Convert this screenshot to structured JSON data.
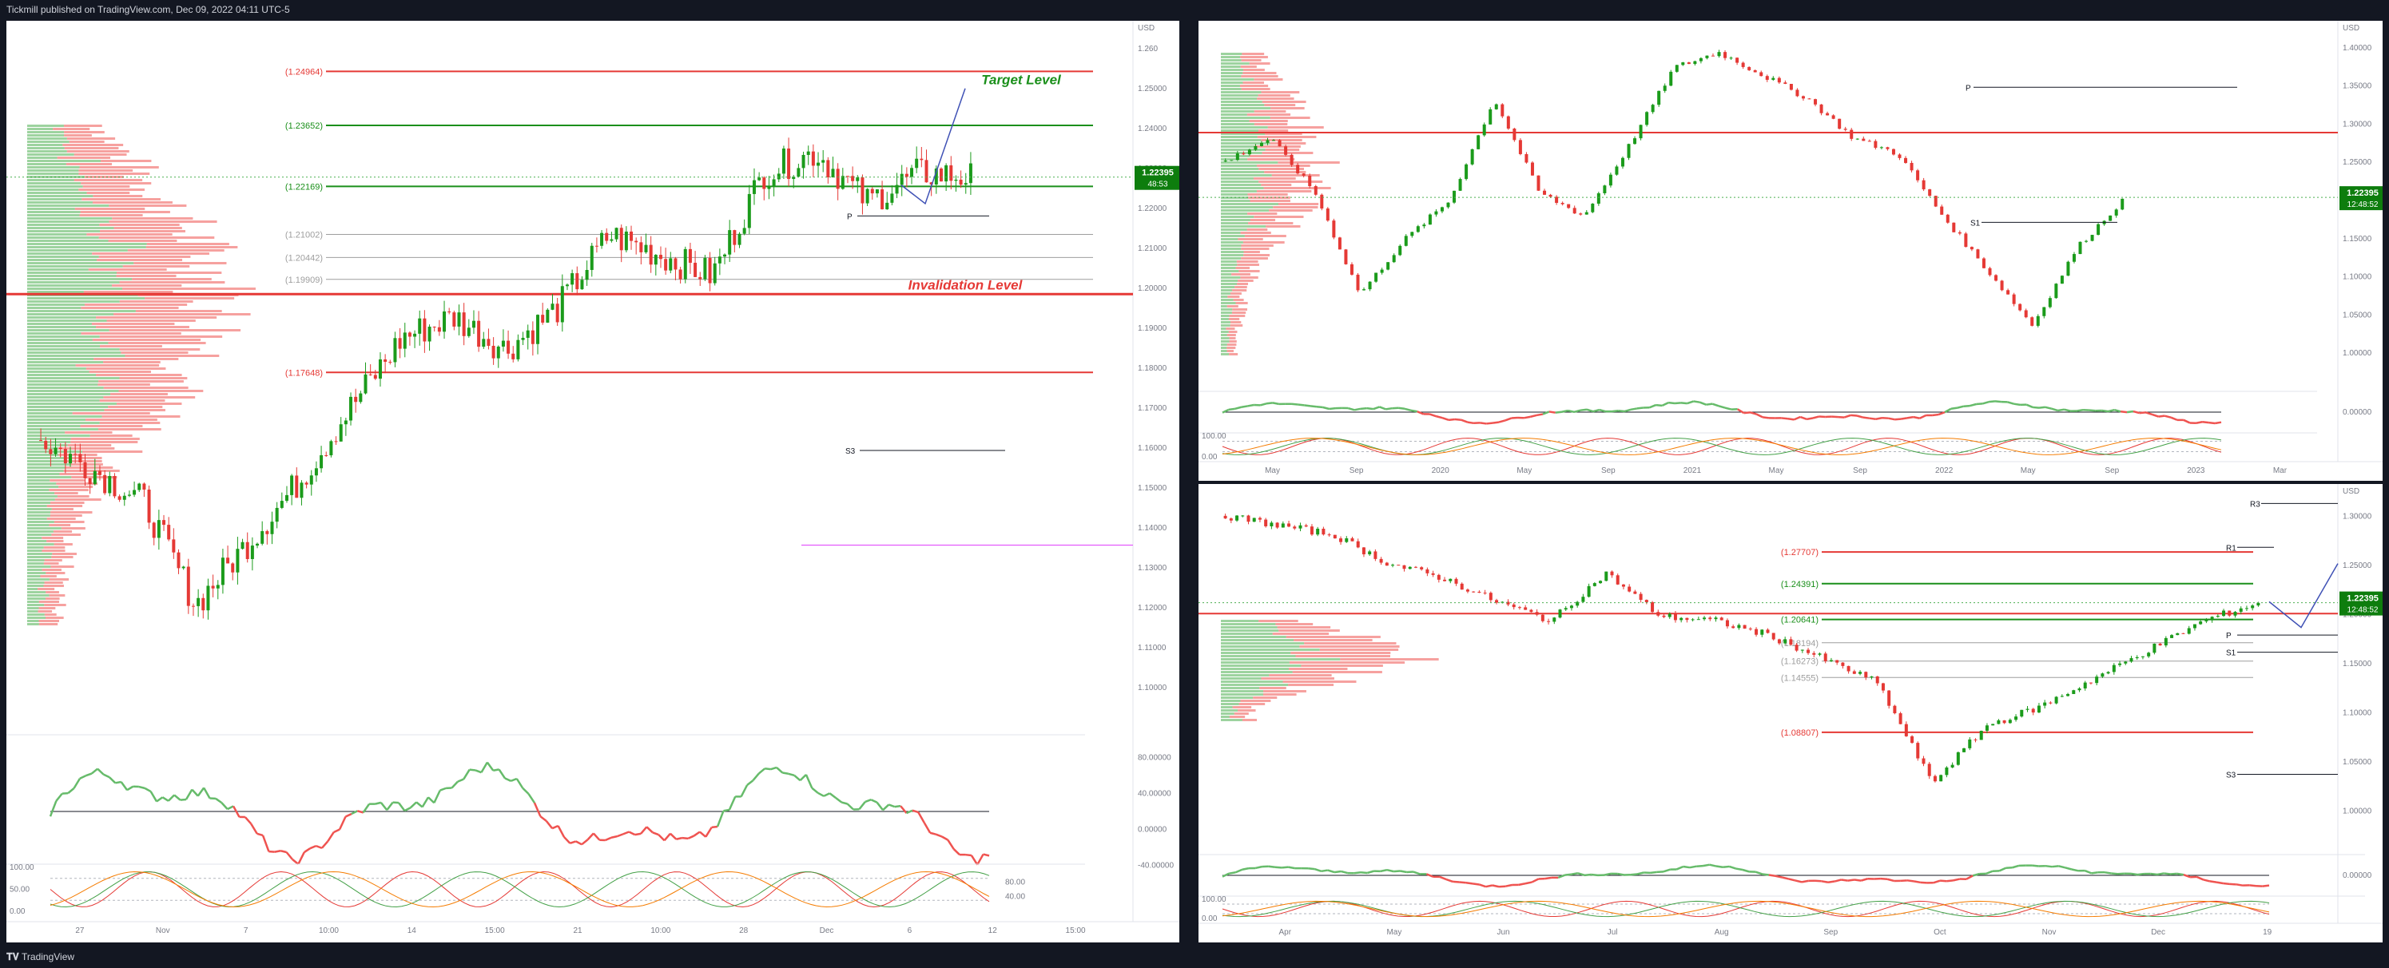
{
  "header": {
    "publisher_line": "Tickmill published on TradingView.com, Dec 09, 2022 04:11 UTC-5"
  },
  "footer": {
    "brand": "TradingView"
  },
  "colors": {
    "up": "#26a69a",
    "up_candle": "#1b9b1b",
    "down": "#e53935",
    "fib_green": "#1a8f1a",
    "fib_red": "#e53935",
    "price_tag": "#0d7d0d"
  },
  "chart_data": [
    {
      "type": "candlestick",
      "panel": "left-hourly",
      "currency": "USD",
      "price_label": "1.22395",
      "countdown": "48:53",
      "annotations": {
        "target": "Target Level",
        "invalidation": "Invalidation Level",
        "pivot_p": "P",
        "s3": "S3"
      },
      "fib_levels": [
        {
          "label": "(1.24964)",
          "value": 1.24964,
          "color": "red"
        },
        {
          "label": "(1.23652)",
          "value": 1.23652,
          "color": "green"
        },
        {
          "label": "(1.22169)",
          "value": 1.22169,
          "color": "green"
        },
        {
          "label": "(1.21002)",
          "value": 1.21002,
          "color": "gray"
        },
        {
          "label": "(1.20442)",
          "value": 1.20442,
          "color": "gray"
        },
        {
          "label": "(1.19909)",
          "value": 1.19909,
          "color": "gray"
        },
        {
          "label": "(1.17648)",
          "value": 1.17648,
          "color": "red"
        }
      ],
      "y_ticks": [
        "1.260",
        "1.25000",
        "1.24000",
        "1.23000",
        "1.22000",
        "1.21000",
        "1.20000",
        "1.19000",
        "1.18000",
        "1.17000",
        "1.16000",
        "1.15000",
        "1.14000",
        "1.13000",
        "1.12000",
        "1.11000",
        "1.10000"
      ],
      "ylim": [
        1.095,
        1.26
      ],
      "x_ticks": [
        "27",
        "Nov",
        "7",
        "10:00",
        "14",
        "15:00",
        "21",
        "10:00",
        "28",
        "Dec",
        "6",
        "12",
        "15:00"
      ],
      "osc_ticks": [
        "80.00000",
        "40.00000",
        "0.00000",
        "-40.00000"
      ],
      "stoch_ticks": [
        "100.00",
        "50.00",
        "0.00"
      ],
      "stoch_right_ticks": [
        "80.00",
        "40.00"
      ]
    },
    {
      "type": "candlestick",
      "panel": "right-top-weekly",
      "currency": "USD",
      "price_label": "1.22395",
      "countdown": "12:48:52",
      "annotations": {
        "pivot_p": "P",
        "s1": "S1"
      },
      "y_ticks": [
        "1.40000",
        "1.35000",
        "1.30000",
        "1.25000",
        "1.20000",
        "1.15000",
        "1.10000",
        "1.05000",
        "1.00000"
      ],
      "ylim": [
        1.0,
        1.44
      ],
      "x_ticks": [
        "May",
        "Sep",
        "2020",
        "May",
        "Sep",
        "2021",
        "May",
        "Sep",
        "2022",
        "May",
        "Sep",
        "2023",
        "Mar"
      ],
      "osc_ticks": [
        "0.00000"
      ],
      "stoch_ticks": [
        "100.00",
        "0.00"
      ]
    },
    {
      "type": "candlestick",
      "panel": "right-bottom-daily",
      "currency": "USD",
      "price_label": "1.22395",
      "countdown": "12:48:52",
      "annotations": {
        "r3": "R3",
        "r1": "R1",
        "pivot_p": "P",
        "s1": "S1",
        "s3": "S3"
      },
      "fib_levels": [
        {
          "label": "(1.27707)",
          "value": 1.27707,
          "color": "red"
        },
        {
          "label": "(1.24391)",
          "value": 1.24391,
          "color": "green"
        },
        {
          "label": "(1.20641)",
          "value": 1.20641,
          "color": "green"
        },
        {
          "label": "(1.18194)",
          "value": 1.18194,
          "color": "gray"
        },
        {
          "label": "(1.16273)",
          "value": 1.16273,
          "color": "gray"
        },
        {
          "label": "(1.14555)",
          "value": 1.14555,
          "color": "gray"
        },
        {
          "label": "(1.08807)",
          "value": 1.08807,
          "color": "red"
        }
      ],
      "y_ticks": [
        "1.30000",
        "1.25000",
        "1.20000",
        "1.15000",
        "1.10000",
        "1.05000",
        "1.00000"
      ],
      "ylim": [
        0.98,
        1.34
      ],
      "x_ticks": [
        "Apr",
        "May",
        "Jun",
        "Jul",
        "Aug",
        "Sep",
        "Oct",
        "Nov",
        "Dec",
        "19"
      ],
      "osc_ticks": [
        "0.00000"
      ],
      "stoch_ticks": [
        "100.00",
        "0.00"
      ]
    }
  ]
}
